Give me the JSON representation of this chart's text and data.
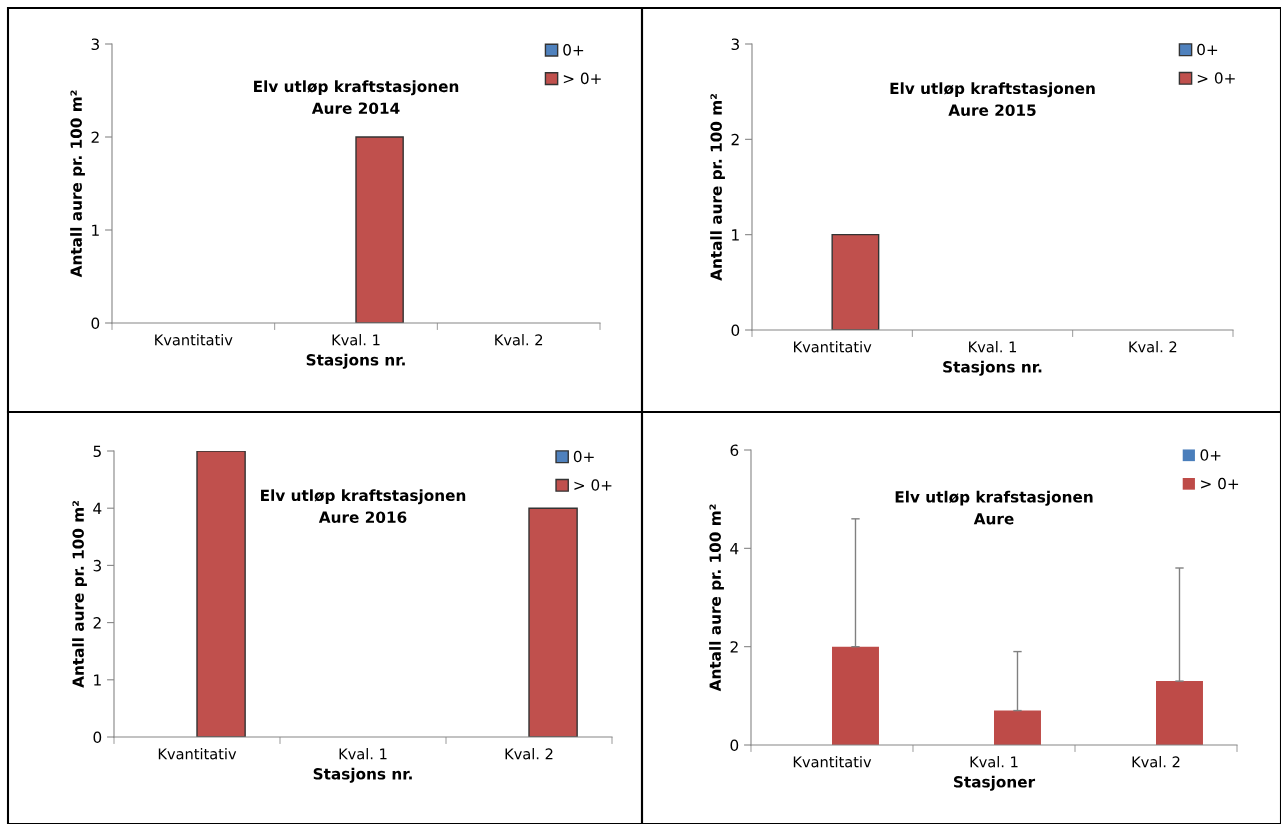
{
  "chart_data": [
    {
      "type": "bar",
      "title": "Elv utløp kraftstasjonen\nAure 2014",
      "xlabel": "Stasjons nr.",
      "ylabel": "Antall aure pr. 100 m²",
      "categories": [
        "Kvantitativ",
        "Kval. 1",
        "Kval. 2"
      ],
      "series": [
        {
          "name": "0+",
          "color": "#4f81bd",
          "values": [
            0,
            0,
            0
          ]
        },
        {
          "name": "> 0+",
          "color": "#c0504d",
          "values": [
            0,
            2,
            0
          ]
        }
      ],
      "ylim": [
        0,
        3
      ],
      "yticks": [
        0,
        1,
        2,
        3
      ],
      "grid": false,
      "legend": "top right"
    },
    {
      "type": "bar",
      "title": "Elv utløp kraftstasjonen\nAure 2015",
      "xlabel": "Stasjons nr.",
      "ylabel": "Antall aure pr. 100 m²",
      "categories": [
        "Kvantitativ",
        "Kval. 1",
        "Kval. 2"
      ],
      "series": [
        {
          "name": "0+",
          "color": "#4f81bd",
          "values": [
            0,
            0,
            0
          ]
        },
        {
          "name": "> 0+",
          "color": "#c0504d",
          "values": [
            1,
            0,
            0
          ]
        }
      ],
      "ylim": [
        0,
        3
      ],
      "yticks": [
        0,
        1,
        2,
        3
      ],
      "grid": false,
      "legend": "top right"
    },
    {
      "type": "bar",
      "title": "Elv utløp kraftstasjonen\nAure 2016",
      "xlabel": "Stasjons nr.",
      "ylabel": "Antall aure pr. 100 m²",
      "categories": [
        "Kvantitativ",
        "Kval. 1",
        "Kval. 2"
      ],
      "series": [
        {
          "name": "0+",
          "color": "#4f81bd",
          "values": [
            0,
            0,
            0
          ]
        },
        {
          "name": "> 0+",
          "color": "#c0504d",
          "values": [
            5,
            0,
            4
          ]
        }
      ],
      "ylim": [
        0,
        5
      ],
      "yticks": [
        0,
        1,
        2,
        3,
        4,
        5
      ],
      "grid": false,
      "legend": "top right"
    },
    {
      "type": "bar",
      "title": "Elv utløp krafstasjonen\nAure",
      "xlabel": "Stasjoner",
      "ylabel": "Antall aure pr. 100 m²",
      "categories": [
        "Kvantitativ",
        "Kval. 1",
        "Kval. 2"
      ],
      "series": [
        {
          "name": "0+",
          "color": "#4a7ebb",
          "values": [
            0,
            0,
            0
          ]
        },
        {
          "name": "> 0+",
          "color": "#be4b48",
          "values": [
            2.0,
            0.7,
            1.3
          ],
          "errors": [
            [
              2.0,
              4.6
            ],
            [
              0.7,
              1.9
            ],
            [
              1.3,
              3.6
            ]
          ]
        }
      ],
      "ylim": [
        0,
        6
      ],
      "yticks": [
        0,
        2,
        4,
        6
      ],
      "grid": false,
      "legend": "top right"
    }
  ]
}
